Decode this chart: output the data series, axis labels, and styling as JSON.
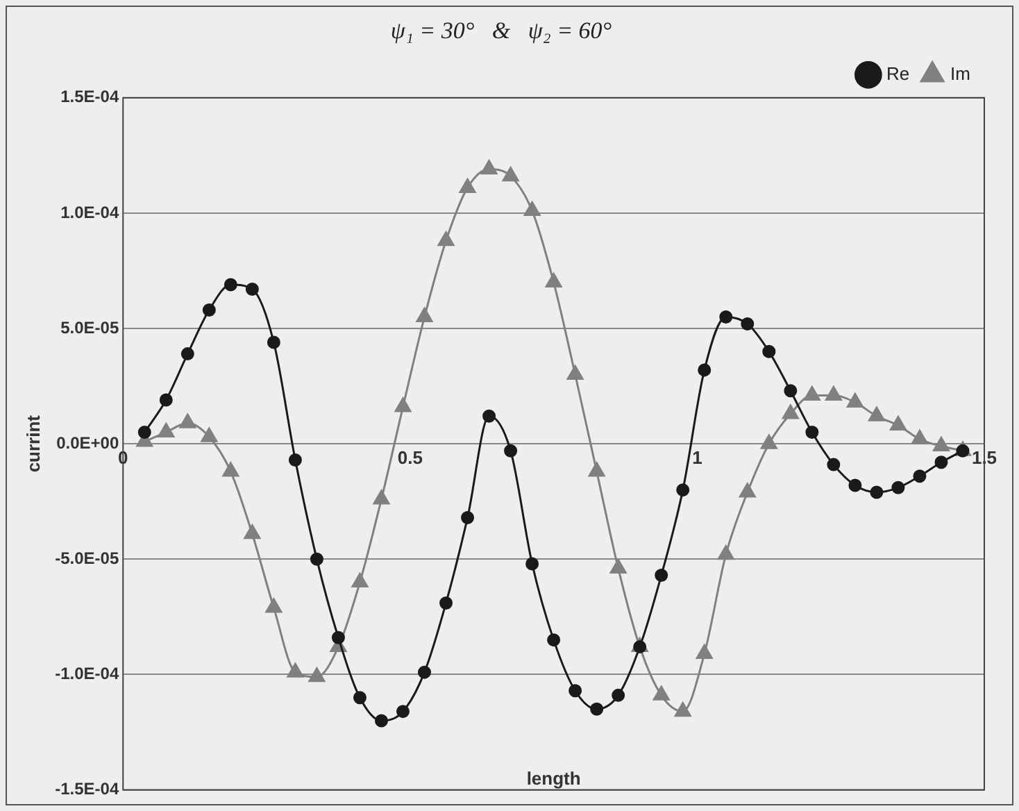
{
  "chart_data": {
    "type": "line",
    "title": "ψ₁ = 30°   &   ψ₂ = 60°",
    "xlabel": "length",
    "ylabel": "currint",
    "x": [
      0.0375,
      0.075,
      0.1125,
      0.15,
      0.1875,
      0.225,
      0.2625,
      0.3,
      0.3375,
      0.375,
      0.4125,
      0.45,
      0.4875,
      0.525,
      0.5625,
      0.6,
      0.6375,
      0.675,
      0.7125,
      0.75,
      0.7875,
      0.825,
      0.8625,
      0.9,
      0.9375,
      0.975,
      1.0125,
      1.05,
      1.0875,
      1.125,
      1.1625,
      1.2,
      1.2375,
      1.275,
      1.3125,
      1.35,
      1.3875,
      1.425,
      1.4625
    ],
    "series": [
      {
        "name": "Re",
        "color": "#1a1a1a",
        "marker": "circle",
        "values": [
          5e-06,
          1.9e-05,
          3.9e-05,
          5.8e-05,
          6.9e-05,
          6.7e-05,
          4.4e-05,
          -7e-06,
          -5e-05,
          -8.4e-05,
          -0.00011,
          -0.00012,
          -0.000116,
          -9.9e-05,
          -6.9e-05,
          -3.2e-05,
          1.2e-05,
          -3e-06,
          -5.2e-05,
          -8.5e-05,
          -0.000107,
          -0.000115,
          -0.000109,
          -8.8e-05,
          -5.7e-05,
          -2e-05,
          3.2e-05,
          5.5e-05,
          5.2e-05,
          4e-05,
          2.3e-05,
          5e-06,
          -9e-06,
          -1.8e-05,
          -2.1e-05,
          -1.9e-05,
          -1.4e-05,
          -8e-06,
          -3e-06
        ]
      },
      {
        "name": "Im",
        "color": "#808080",
        "marker": "triangle",
        "values": [
          1e-06,
          5e-06,
          9e-06,
          3e-06,
          -1.2e-05,
          -3.9e-05,
          -7.1e-05,
          -9.9e-05,
          -0.000101,
          -8.8e-05,
          -6e-05,
          -2.4e-05,
          1.6e-05,
          5.5e-05,
          8.8e-05,
          0.000111,
          0.000119,
          0.000116,
          0.000101,
          7e-05,
          3e-05,
          -1.2e-05,
          -5.4e-05,
          -8.8e-05,
          -0.000109,
          -0.000116,
          -9.1e-05,
          -4.8e-05,
          -2.1e-05,
          0,
          1.3e-05,
          2.1e-05,
          2.1e-05,
          1.8e-05,
          1.2e-05,
          8e-06,
          2e-06,
          -1e-06,
          -3e-06
        ]
      }
    ],
    "xlim": [
      0,
      1.5
    ],
    "xticks": [
      0,
      0.5,
      1,
      1.5
    ],
    "ylim": [
      -0.00015,
      0.00015
    ],
    "yticks": [
      {
        "value": -0.00015,
        "label": "-1.5E-04"
      },
      {
        "value": -0.0001,
        "label": "-1.0E-04"
      },
      {
        "value": -5e-05,
        "label": "-5.0E-05"
      },
      {
        "value": 0,
        "label": "0.0E+00"
      },
      {
        "value": 5e-05,
        "label": "5.0E-05"
      },
      {
        "value": 0.0001,
        "label": "1.0E-04"
      },
      {
        "value": 0.00015,
        "label": "1.5E-04"
      }
    ],
    "grid": "y",
    "legend": "top right",
    "line_style": "solid"
  }
}
